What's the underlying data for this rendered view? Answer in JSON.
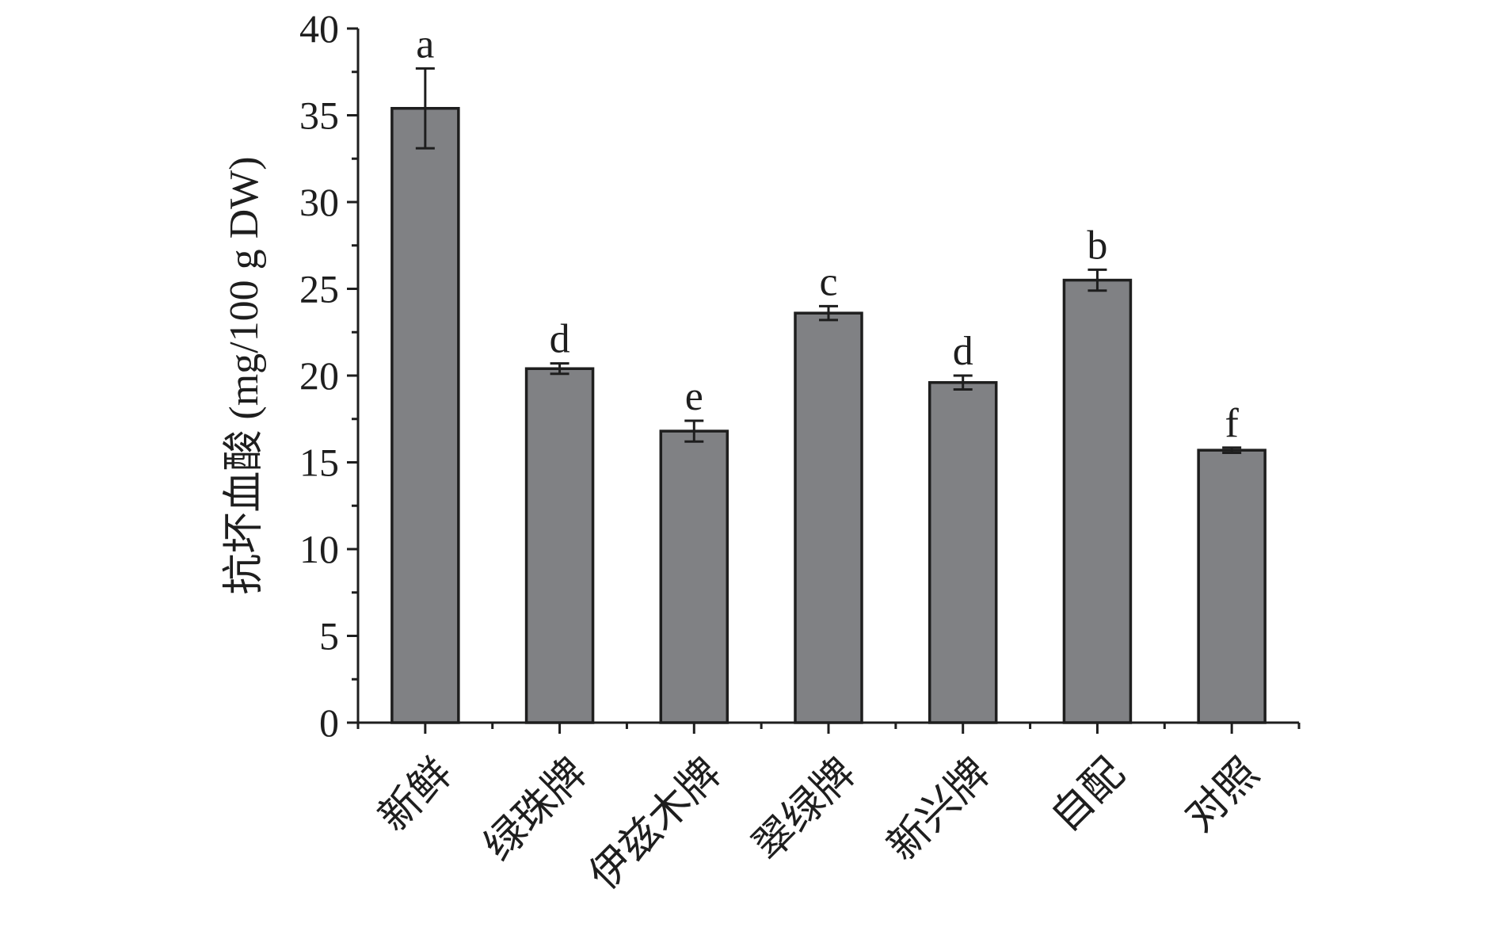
{
  "chart_data": {
    "type": "bar",
    "title": "",
    "xlabel": "",
    "ylabel": "抗坏血酸 (mg/100 g DW)",
    "ylim": [
      0,
      40
    ],
    "yticks": [
      "0",
      "5",
      "10",
      "15",
      "20",
      "25",
      "30",
      "35",
      "40"
    ],
    "categories": [
      "新鲜",
      "绿珠牌",
      "伊兹木牌",
      "翠绿牌",
      "新兴牌",
      "自配",
      "对照"
    ],
    "values": [
      35.4,
      20.4,
      16.8,
      23.6,
      19.6,
      25.5,
      15.7
    ],
    "errors": [
      2.3,
      0.3,
      0.6,
      0.4,
      0.4,
      0.6,
      0.15
    ],
    "significance": [
      "a",
      "d",
      "e",
      "c",
      "d",
      "b",
      "f"
    ],
    "bar_color": "#808184",
    "edge_color": "#1e1e1e",
    "grid": false,
    "legend": "none"
  }
}
